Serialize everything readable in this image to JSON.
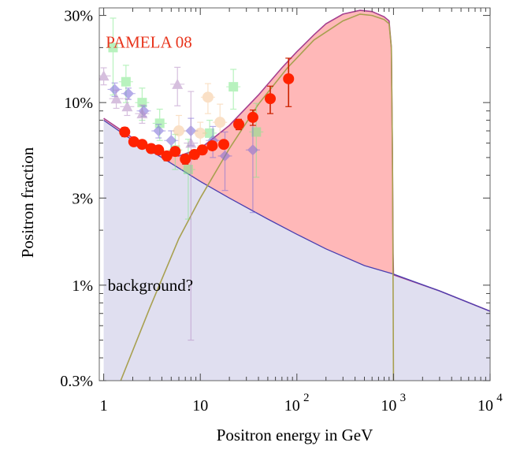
{
  "chart_data": {
    "type": "scatter",
    "xlabel": "Positron energy in GeV",
    "ylabel": "Positron fraction",
    "xscale": "log",
    "yscale": "log",
    "xlim": [
      0.9,
      10000
    ],
    "ylim": [
      0.003,
      0.33
    ],
    "x_ticks": [
      {
        "value": 1,
        "label": "1",
        "exp": ""
      },
      {
        "value": 10,
        "label": "10",
        "exp": ""
      },
      {
        "value": 100,
        "label": "10",
        "exp": "2"
      },
      {
        "value": 1000,
        "label": "10",
        "exp": "3"
      },
      {
        "value": 10000,
        "label": "10",
        "exp": "4"
      }
    ],
    "y_ticks": [
      {
        "value": 0.003,
        "label": "0.3%"
      },
      {
        "value": 0.01,
        "label": "1%"
      },
      {
        "value": 0.03,
        "label": "3%"
      },
      {
        "value": 0.1,
        "label": "10%"
      },
      {
        "value": 0.3,
        "label": "30%"
      }
    ],
    "grid": false,
    "annotations": [
      {
        "text": "PAMELA 08",
        "x": 1.05,
        "y": 0.2,
        "color": "#e8351d"
      },
      {
        "text": "background?",
        "x": 1.1,
        "y": 0.0093,
        "color": "#000000"
      }
    ],
    "colors": {
      "background_fill": "#e0dff0",
      "background_line": "#4b3fb0",
      "signal_fill": "#ffb8b8",
      "signal_outline": "#a64090",
      "model_line": "#a8a050",
      "pamela": "#ff2200",
      "pamela_err": "#cc2200"
    },
    "background_curve": [
      [
        1,
        0.08
      ],
      [
        2,
        0.062
      ],
      [
        4,
        0.05
      ],
      [
        10,
        0.037
      ],
      [
        20,
        0.03
      ],
      [
        50,
        0.023
      ],
      [
        100,
        0.019
      ],
      [
        200,
        0.0158
      ],
      [
        500,
        0.0128
      ],
      [
        1000,
        0.0115
      ],
      [
        3000,
        0.0093
      ],
      [
        10000,
        0.0072
      ]
    ],
    "total_curve": [
      [
        1,
        0.082
      ],
      [
        2,
        0.064
      ],
      [
        4,
        0.052
      ],
      [
        6,
        0.051
      ],
      [
        10,
        0.056
      ],
      [
        20,
        0.075
      ],
      [
        40,
        0.11
      ],
      [
        70,
        0.155
      ],
      [
        100,
        0.19
      ],
      [
        150,
        0.235
      ],
      [
        200,
        0.27
      ],
      [
        300,
        0.305
      ],
      [
        450,
        0.32
      ],
      [
        600,
        0.315
      ],
      [
        800,
        0.295
      ],
      [
        900,
        0.28
      ],
      [
        950,
        0.2
      ],
      [
        975,
        0.05
      ],
      [
        990,
        0.015
      ],
      [
        1000,
        0.0114
      ],
      [
        3000,
        0.0093
      ],
      [
        10000,
        0.0072
      ]
    ],
    "model_curve": [
      [
        1.5,
        0.003
      ],
      [
        3,
        0.0075
      ],
      [
        6,
        0.018
      ],
      [
        10,
        0.03
      ],
      [
        20,
        0.056
      ],
      [
        40,
        0.098
      ],
      [
        80,
        0.155
      ],
      [
        150,
        0.22
      ],
      [
        300,
        0.28
      ],
      [
        450,
        0.305
      ],
      [
        600,
        0.3
      ],
      [
        800,
        0.285
      ],
      [
        900,
        0.27
      ],
      [
        950,
        0.2
      ],
      [
        975,
        0.05
      ],
      [
        990,
        0.01
      ],
      [
        1000,
        0.003
      ]
    ],
    "series": [
      {
        "marker": "circle",
        "color": "#ff2200",
        "points": [
          {
            "x": 1.65,
            "y": 0.069,
            "err": 0.004
          },
          {
            "x": 2.05,
            "y": 0.061,
            "err": 0.003
          },
          {
            "x": 2.5,
            "y": 0.059,
            "err": 0.003
          },
          {
            "x": 3.1,
            "y": 0.056,
            "err": 0.003
          },
          {
            "x": 3.7,
            "y": 0.055,
            "err": 0.003
          },
          {
            "x": 4.5,
            "y": 0.051,
            "err": 0.003
          },
          {
            "x": 5.5,
            "y": 0.054,
            "err": 0.003
          },
          {
            "x": 7.0,
            "y": 0.049,
            "err": 0.003
          },
          {
            "x": 8.7,
            "y": 0.052,
            "err": 0.003
          },
          {
            "x": 10.5,
            "y": 0.055,
            "err": 0.003
          },
          {
            "x": 13.3,
            "y": 0.058,
            "err": 0.003
          },
          {
            "x": 17.5,
            "y": 0.059,
            "err": 0.003
          },
          {
            "x": 25,
            "y": 0.076,
            "err": 0.005
          },
          {
            "x": 35,
            "y": 0.083,
            "err": 0.008
          },
          {
            "x": 53,
            "y": 0.105,
            "err": 0.018
          },
          {
            "x": 82,
            "y": 0.135,
            "err": 0.04
          }
        ]
      },
      {
        "marker": "square",
        "color": "#7fe88a",
        "points": [
          {
            "x": 1.25,
            "y": 0.2,
            "err": 0.09
          },
          {
            "x": 1.7,
            "y": 0.13,
            "err": 0.03
          },
          {
            "x": 2.5,
            "y": 0.1,
            "err": 0.02
          },
          {
            "x": 3.8,
            "y": 0.077,
            "err": 0.015
          },
          {
            "x": 5.5,
            "y": 0.055,
            "err": 0.012
          },
          {
            "x": 7.5,
            "y": 0.043,
            "err": 0.02
          },
          {
            "x": 12.5,
            "y": 0.068,
            "err": 0.012
          },
          {
            "x": 22,
            "y": 0.122,
            "err": 0.03
          },
          {
            "x": 38,
            "y": 0.069,
            "err": 0.03
          }
        ]
      },
      {
        "marker": "diamond",
        "color": "#7a6ad8",
        "points": [
          {
            "x": 1.3,
            "y": 0.118,
            "err": 0.01
          },
          {
            "x": 1.8,
            "y": 0.112,
            "err": 0.008
          },
          {
            "x": 2.6,
            "y": 0.09,
            "err": 0.006
          },
          {
            "x": 3.7,
            "y": 0.07,
            "err": 0.006
          },
          {
            "x": 5.0,
            "y": 0.062,
            "err": 0.008
          },
          {
            "x": 8.0,
            "y": 0.07,
            "err": 0.012
          },
          {
            "x": 13.5,
            "y": 0.062,
            "err": 0.012
          },
          {
            "x": 18,
            "y": 0.051,
            "err": 0.018
          },
          {
            "x": 35,
            "y": 0.055,
            "err": 0.03
          }
        ]
      },
      {
        "marker": "triangle",
        "color": "#b58cc4",
        "points": [
          {
            "x": 1.0,
            "y": 0.14,
            "err": 0.015
          },
          {
            "x": 1.35,
            "y": 0.105,
            "err": 0.012
          },
          {
            "x": 1.75,
            "y": 0.095,
            "err": 0.01
          },
          {
            "x": 2.5,
            "y": 0.087,
            "err": 0.01
          },
          {
            "x": 5.8,
            "y": 0.126,
            "err": 0.03
          },
          {
            "x": 8.0,
            "y": 0.06,
            "err": 0.055
          }
        ]
      },
      {
        "marker": "circle",
        "color": "#f6c898",
        "points": [
          {
            "x": 6.0,
            "y": 0.07,
            "err": 0.015
          },
          {
            "x": 12.0,
            "y": 0.107,
            "err": 0.02
          },
          {
            "x": 16.0,
            "y": 0.078,
            "err": 0.02
          },
          {
            "x": 10.0,
            "y": 0.068,
            "err": 0.01
          }
        ]
      }
    ]
  }
}
